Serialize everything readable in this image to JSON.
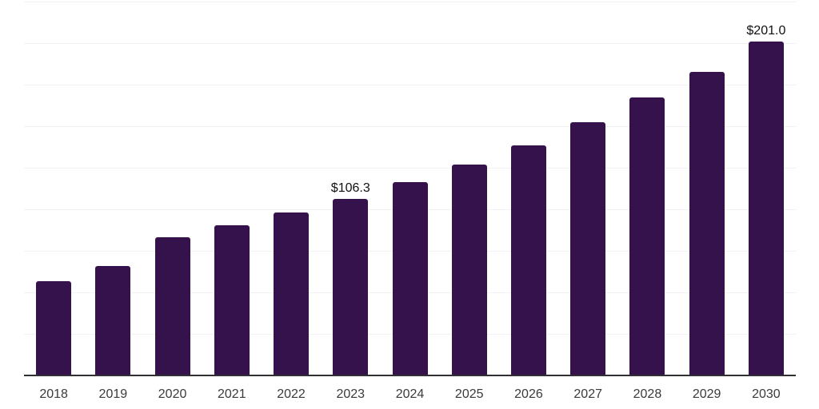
{
  "chart_data": {
    "type": "bar",
    "title": "",
    "xlabel": "",
    "ylabel": "",
    "categories": [
      "2018",
      "2019",
      "2020",
      "2021",
      "2022",
      "2023",
      "2024",
      "2025",
      "2026",
      "2027",
      "2028",
      "2029",
      "2030"
    ],
    "values": [
      56.7,
      66.0,
      83.3,
      90.2,
      98.2,
      106.3,
      116.2,
      126.9,
      138.6,
      152.3,
      167.3,
      182.6,
      201.0
    ],
    "value_prefix": "$",
    "annotations": [
      {
        "category": "2023",
        "label": "$106.3"
      },
      {
        "category": "2030",
        "label": "$201.0"
      }
    ],
    "ylim": [
      0,
      225
    ],
    "grid_step": 25,
    "grid_visible": true,
    "y_tick_labels_visible": false,
    "legend_position": "none",
    "colors": {
      "bar": "#35124B",
      "grid": "#f2f2f4",
      "axis": "#303034",
      "tick_label": "#3a3a3a",
      "annotation": "#111111",
      "background": "#ffffff"
    }
  }
}
